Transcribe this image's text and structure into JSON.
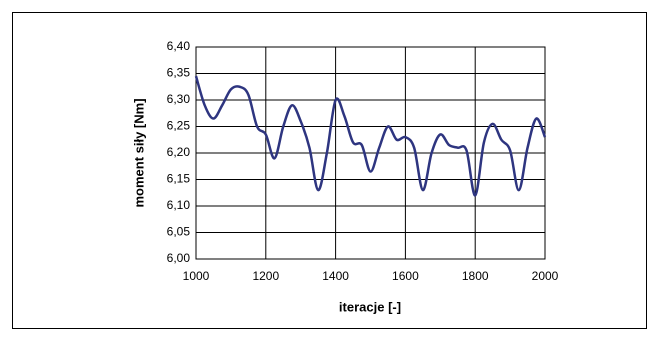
{
  "chart_data": {
    "type": "line",
    "x_label": "iteracje [-]",
    "y_label": "moment siły [Nm]",
    "x": [
      1000,
      1025,
      1050,
      1075,
      1100,
      1125,
      1150,
      1175,
      1200,
      1225,
      1250,
      1275,
      1300,
      1325,
      1350,
      1375,
      1400,
      1425,
      1450,
      1475,
      1500,
      1525,
      1550,
      1575,
      1600,
      1625,
      1650,
      1675,
      1700,
      1725,
      1750,
      1775,
      1800,
      1825,
      1850,
      1875,
      1900,
      1925,
      1950,
      1975,
      2000
    ],
    "series": [
      {
        "color": "#2e3580",
        "values": [
          6.345,
          6.29,
          6.265,
          6.29,
          6.32,
          6.325,
          6.31,
          6.25,
          6.235,
          6.19,
          6.25,
          6.29,
          6.26,
          6.21,
          6.13,
          6.2,
          6.3,
          6.27,
          6.22,
          6.215,
          6.165,
          6.21,
          6.25,
          6.225,
          6.23,
          6.21,
          6.13,
          6.2,
          6.235,
          6.215,
          6.21,
          6.205,
          6.12,
          6.22,
          6.255,
          6.225,
          6.205,
          6.13,
          6.21,
          6.265,
          6.23
        ]
      }
    ],
    "xlim": [
      1000,
      2000
    ],
    "xticks": [
      1000,
      1200,
      1400,
      1600,
      1800,
      2000
    ],
    "ylim": [
      6.0,
      6.4
    ],
    "yticks": [
      {
        "value": 6.0,
        "label": "6,00"
      },
      {
        "value": 6.05,
        "label": "6,05"
      },
      {
        "value": 6.1,
        "label": "6,10"
      },
      {
        "value": 6.15,
        "label": "6,15"
      },
      {
        "value": 6.2,
        "label": "6,20"
      },
      {
        "value": 6.25,
        "label": "6,25"
      },
      {
        "value": 6.3,
        "label": "6,30"
      },
      {
        "value": 6.35,
        "label": "6,35"
      },
      {
        "value": 6.4,
        "label": "6,40"
      }
    ],
    "grid": true
  }
}
